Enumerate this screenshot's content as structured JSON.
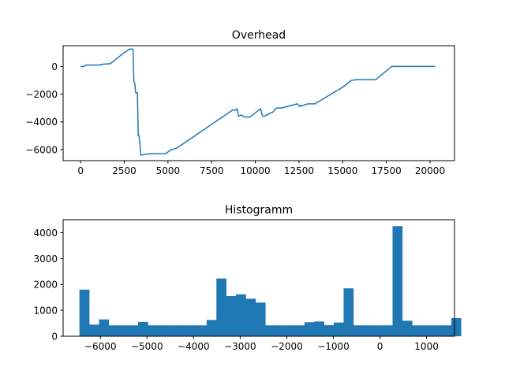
{
  "colors": {
    "series": "#1f77b4",
    "background": "#ffffff",
    "axis": "#000000"
  },
  "chart_data": [
    {
      "type": "line",
      "title": "Overhead",
      "xlabel": "",
      "ylabel": "",
      "xlim": [
        -1000,
        21400
      ],
      "ylim": [
        -6800,
        1500
      ],
      "xticks": [
        0,
        2500,
        5000,
        7500,
        10000,
        12500,
        15000,
        17500,
        20000
      ],
      "xtick_labels": [
        "0",
        "2500",
        "5000",
        "7500",
        "10000",
        "12500",
        "15000",
        "17500",
        "20000"
      ],
      "yticks": [
        0,
        -2000,
        -4000,
        -6000
      ],
      "ytick_labels": [
        "0",
        "−2000",
        "−4000",
        "−6000"
      ],
      "grid": false,
      "series": [
        {
          "x": [
            0,
            200,
            300,
            1100,
            1200,
            1700,
            2100,
            2500,
            2800,
            3000,
            3050,
            3100,
            3150,
            3250,
            3300,
            3350,
            3450,
            3500,
            3650,
            4000,
            4850,
            5200,
            5500,
            8700,
            8900,
            8950,
            9050,
            9200,
            9400,
            9700,
            10300,
            10400,
            10450,
            10600,
            10800,
            11000,
            11200,
            11500,
            12400,
            12550,
            12600,
            12650,
            13000,
            13400,
            14800,
            15000,
            15500,
            15800,
            16900,
            17800,
            20300
          ],
          "y": [
            0,
            0,
            100,
            100,
            150,
            200,
            600,
            1000,
            1250,
            1250,
            -1100,
            -1200,
            -1900,
            -1900,
            -5000,
            -5000,
            -6400,
            -6400,
            -6350,
            -6300,
            -6300,
            -6000,
            -5900,
            -3150,
            -3150,
            -3050,
            -3600,
            -3500,
            -3650,
            -3650,
            -3050,
            -3550,
            -3600,
            -3550,
            -3400,
            -3300,
            -3000,
            -3000,
            -2700,
            -2900,
            -2800,
            -2850,
            -2700,
            -2700,
            -1650,
            -1500,
            -1000,
            -950,
            -950,
            0,
            0
          ]
        }
      ]
    },
    {
      "type": "bar",
      "title": "Histogramm",
      "xlabel": "",
      "ylabel": "",
      "xlim": [
        -6800,
        1600
      ],
      "ylim": [
        0,
        4500
      ],
      "xticks": [
        -6000,
        -5000,
        -4000,
        -3000,
        -2000,
        -1000,
        0,
        1000
      ],
      "xtick_labels": [
        "−6000",
        "−5000",
        "−4000",
        "−3000",
        "−2000",
        "−1000",
        "0",
        "1000"
      ],
      "yticks": [
        0,
        1000,
        2000,
        3000,
        4000
      ],
      "ytick_labels": [
        "0",
        "1000",
        "2000",
        "3000",
        "4000"
      ],
      "grid": false,
      "bin_start": -6450,
      "bin_width": 210,
      "values": [
        1800,
        450,
        650,
        420,
        420,
        420,
        550,
        420,
        420,
        420,
        420,
        420,
        420,
        630,
        2230,
        1550,
        1620,
        1450,
        1300,
        420,
        420,
        420,
        420,
        540,
        570,
        430,
        530,
        1850,
        420,
        420,
        420,
        420,
        4250,
        600,
        420,
        420,
        420,
        420,
        700
      ]
    }
  ]
}
